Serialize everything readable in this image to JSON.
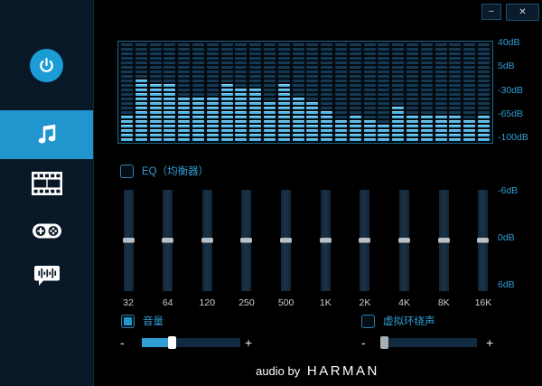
{
  "window_controls": {
    "minimize": "–",
    "close": "✕"
  },
  "sidebar": {
    "items": [
      {
        "id": "power",
        "icon": "power-icon",
        "active": false
      },
      {
        "id": "music",
        "icon": "music-note-icon",
        "active": true
      },
      {
        "id": "movie",
        "icon": "film-icon",
        "active": false
      },
      {
        "id": "game",
        "icon": "gamepad-icon",
        "active": false
      },
      {
        "id": "voice",
        "icon": "voice-chat-icon",
        "active": false
      }
    ],
    "active_color": "#2095ce",
    "background": "#081826"
  },
  "spectrum": {
    "type": "segmented-level-meter",
    "rows": 22,
    "levels": [
      6,
      14,
      13,
      13,
      10,
      10,
      10,
      13,
      12,
      12,
      9,
      13,
      10,
      9,
      7,
      5,
      6,
      5,
      4,
      8,
      6,
      6,
      6,
      6,
      5,
      6
    ],
    "scale_labels": [
      "40dB",
      "5dB",
      "-30dB",
      "-65dB",
      "-100dB"
    ],
    "lit_color": "#46b4e6",
    "unlit_color": "#163953",
    "border_color": "#1d6486"
  },
  "equalizer": {
    "checkbox_label": "EQ（均衡器）",
    "checked": false,
    "bands": [
      "32",
      "64",
      "120",
      "250",
      "500",
      "1K",
      "2K",
      "4K",
      "8K",
      "16K"
    ],
    "band_values_db": [
      0,
      0,
      0,
      0,
      0,
      0,
      0,
      0,
      0,
      0
    ],
    "scale_min_db": -6,
    "scale_max_db": 6,
    "scale_labels": [
      "-6dB",
      "0dB",
      "6dB"
    ]
  },
  "volume": {
    "label": "音量",
    "checked": true,
    "minus": "-",
    "plus": "+",
    "value_percent": 31
  },
  "surround": {
    "label": "虚拟环绕声",
    "checked": false,
    "minus": "-",
    "plus": "+",
    "value_percent": 0
  },
  "branding": {
    "prefix": "audio by",
    "brand": "HARMAN"
  },
  "colors": {
    "accent_blue": "#2f9fd6",
    "slider_handle": "#b9c1c6",
    "fill_blue": "#2fa0d6",
    "text_white": "#ffffff"
  }
}
